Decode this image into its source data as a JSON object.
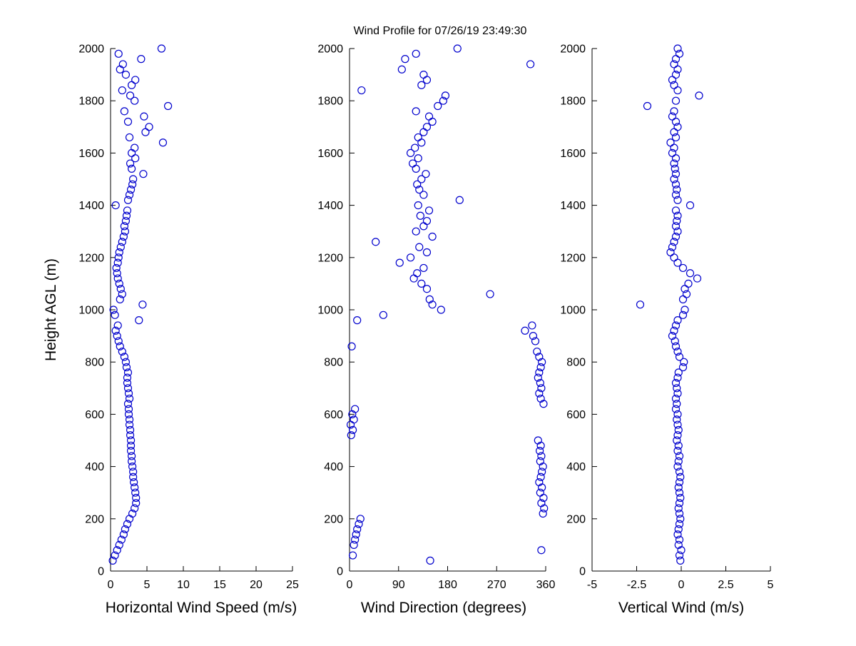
{
  "figure": {
    "background": "#ffffff",
    "axis_color": "#000000"
  },
  "chart_data": {
    "type": "scatter",
    "title": "Wind Profile for  07/26/19 23:49:30",
    "ylabel": "Height AGL (m)",
    "ylim": [
      0,
      2000
    ],
    "yticks": [
      0,
      200,
      400,
      600,
      800,
      1000,
      1200,
      1400,
      1600,
      1800,
      2000
    ],
    "grid": false,
    "legend": "none",
    "marker": "open-circle",
    "marker_color": "#0000cd",
    "panels": [
      {
        "id": "horizontal-wind-speed",
        "xlabel": "Horizontal Wind Speed (m/s)",
        "xlim": [
          0,
          25
        ],
        "xticks": [
          0,
          5,
          10,
          15,
          20,
          25
        ]
      },
      {
        "id": "wind-direction",
        "xlabel": "Wind Direction (degrees)",
        "xlim": [
          0,
          360
        ],
        "xticks": [
          0,
          90,
          180,
          270,
          360
        ]
      },
      {
        "id": "vertical-wind",
        "xlabel": "Vertical Wind (m/s)",
        "xlim": [
          -5,
          5
        ],
        "xticks": [
          -5,
          -2.5,
          0,
          2.5,
          5
        ]
      }
    ],
    "heights": [
      40,
      60,
      80,
      100,
      120,
      140,
      160,
      180,
      200,
      220,
      240,
      260,
      280,
      300,
      320,
      340,
      360,
      380,
      400,
      420,
      440,
      460,
      480,
      500,
      520,
      540,
      560,
      580,
      600,
      620,
      640,
      660,
      680,
      700,
      720,
      740,
      760,
      780,
      800,
      820,
      840,
      860,
      880,
      900,
      920,
      940,
      960,
      980,
      1000,
      1020,
      1040,
      1060,
      1080,
      1100,
      1120,
      1140,
      1160,
      1180,
      1200,
      1220,
      1240,
      1260,
      1280,
      1300,
      1320,
      1340,
      1360,
      1380,
      1400,
      1420,
      1440,
      1460,
      1480,
      1500,
      1520,
      1540,
      1560,
      1580,
      1600,
      1620,
      1640,
      1660,
      1680,
      1700,
      1720,
      1740,
      1760,
      1780,
      1800,
      1820,
      1840,
      1860,
      1880,
      1900,
      1920,
      1940,
      1960,
      1980,
      2000
    ],
    "series": [
      {
        "name": "horizontal_wind_speed_ms",
        "values": [
          0.3,
          0.6,
          0.9,
          1.2,
          1.5,
          1.8,
          2.0,
          2.3,
          2.6,
          3.0,
          3.3,
          3.5,
          3.5,
          3.4,
          3.3,
          3.2,
          3.1,
          3.1,
          3.0,
          2.9,
          2.9,
          2.8,
          2.8,
          2.8,
          2.7,
          2.7,
          2.6,
          2.6,
          2.5,
          2.5,
          2.4,
          2.6,
          2.5,
          2.4,
          2.3,
          2.3,
          2.4,
          2.2,
          2.1,
          1.9,
          1.6,
          1.3,
          1.1,
          0.9,
          0.7,
          1.0,
          3.9,
          0.6,
          0.4,
          4.4,
          1.3,
          1.6,
          1.4,
          1.2,
          1.0,
          0.9,
          0.8,
          1.0,
          1.1,
          1.2,
          1.4,
          1.6,
          1.8,
          2.0,
          1.9,
          2.1,
          2.2,
          2.3,
          0.7,
          2.4,
          2.6,
          2.8,
          3.0,
          3.1,
          4.5,
          2.9,
          2.7,
          3.4,
          2.9,
          3.3,
          7.2,
          2.6,
          4.8,
          5.3,
          2.4,
          4.6,
          1.9,
          7.9,
          3.3,
          2.7,
          1.6,
          2.9,
          3.4,
          2.1,
          1.3,
          1.7,
          4.2,
          1.1,
          7.0
        ]
      },
      {
        "name": "wind_direction_deg",
        "values": [
          148,
          6,
          352,
          8,
          10,
          12,
          14,
          17,
          20,
          355,
          357,
          352,
          356,
          350,
          353,
          348,
          351,
          353,
          355,
          350,
          352,
          349,
          351,
          346,
          3,
          6,
          2,
          8,
          5,
          10,
          356,
          351,
          348,
          352,
          350,
          346,
          348,
          351,
          353,
          348,
          344,
          4,
          341,
          337,
          322,
          335,
          14,
          62,
          168,
          152,
          147,
          258,
          142,
          132,
          118,
          124,
          136,
          92,
          112,
          142,
          128,
          48,
          152,
          122,
          136,
          142,
          130,
          146,
          126,
          202,
          136,
          128,
          124,
          132,
          140,
          122,
          116,
          126,
          112,
          120,
          132,
          126,
          136,
          142,
          152,
          146,
          122,
          162,
          172,
          176,
          22,
          132,
          142,
          136,
          96,
          332,
          102,
          122,
          198
        ]
      },
      {
        "name": "vertical_wind_ms",
        "values": [
          -0.05,
          -0.1,
          0.0,
          -0.15,
          -0.1,
          -0.2,
          -0.15,
          -0.1,
          -0.05,
          -0.1,
          -0.15,
          -0.1,
          -0.05,
          -0.1,
          -0.15,
          -0.1,
          -0.05,
          -0.1,
          -0.2,
          -0.15,
          -0.1,
          -0.2,
          -0.15,
          -0.25,
          -0.2,
          -0.15,
          -0.2,
          -0.25,
          -0.2,
          -0.3,
          -0.25,
          -0.3,
          -0.2,
          -0.25,
          -0.3,
          -0.2,
          -0.15,
          0.1,
          0.15,
          -0.1,
          -0.2,
          -0.3,
          -0.35,
          -0.5,
          -0.4,
          -0.3,
          -0.2,
          0.1,
          0.2,
          -2.3,
          0.1,
          0.3,
          0.2,
          0.4,
          0.9,
          0.5,
          0.1,
          -0.2,
          -0.4,
          -0.6,
          -0.5,
          -0.4,
          -0.3,
          -0.2,
          -0.3,
          -0.25,
          -0.2,
          -0.3,
          0.5,
          -0.2,
          -0.3,
          -0.25,
          -0.3,
          -0.4,
          -0.3,
          -0.35,
          -0.4,
          -0.3,
          -0.5,
          -0.4,
          -0.6,
          -0.3,
          -0.4,
          -0.2,
          -0.3,
          -0.5,
          -0.4,
          -1.9,
          -0.3,
          1.0,
          -0.2,
          -0.4,
          -0.5,
          -0.3,
          -0.2,
          -0.4,
          -0.3,
          -0.1,
          -0.2
        ]
      }
    ]
  }
}
